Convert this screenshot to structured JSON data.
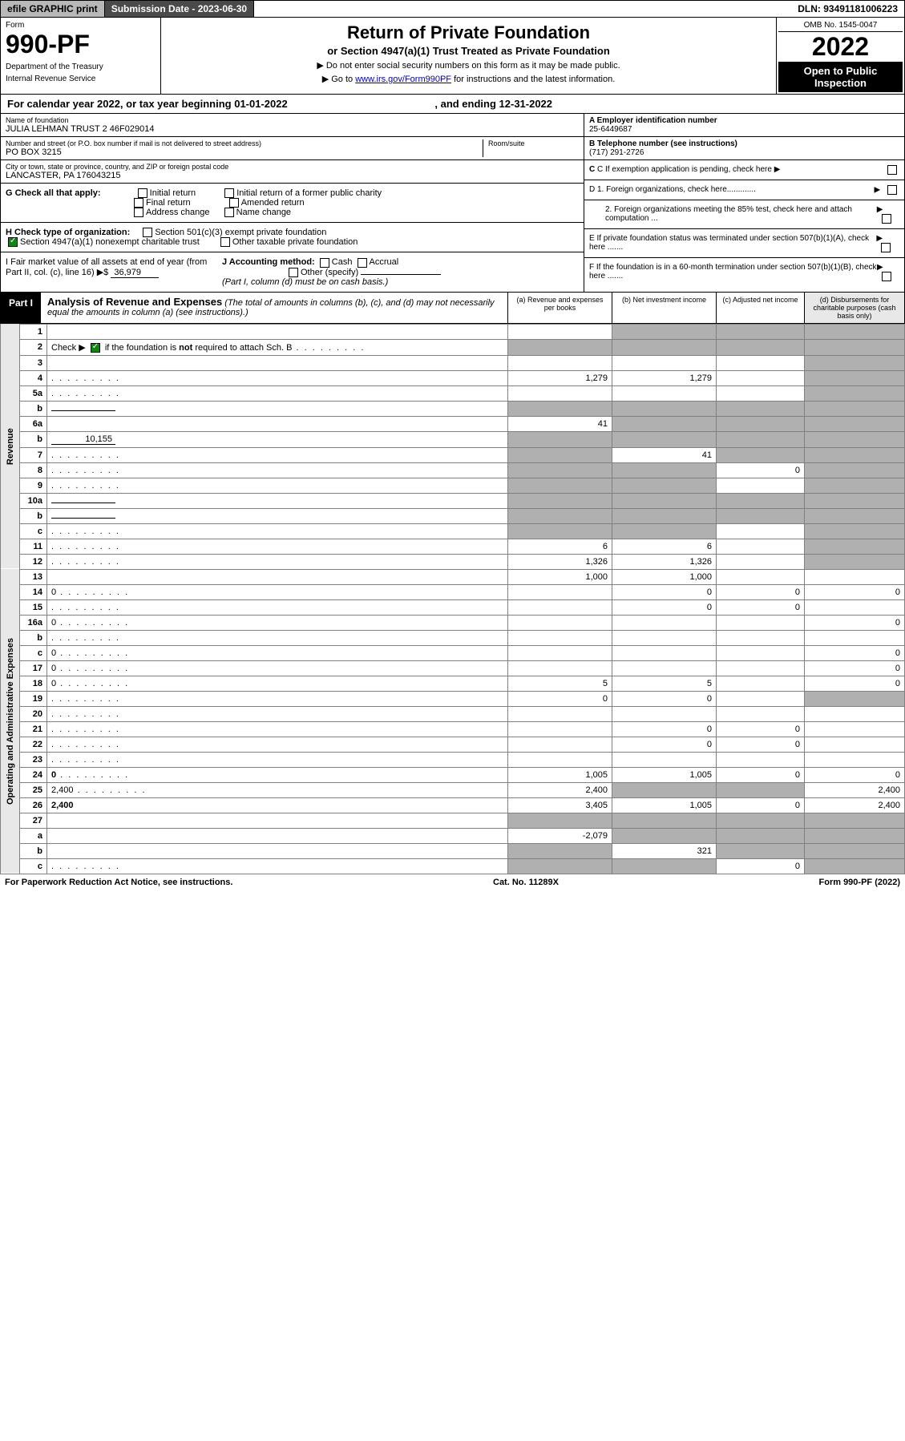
{
  "topbar": {
    "efile": "efile GRAPHIC print",
    "submission_label": "Submission Date - 2023-06-30",
    "dln_label": "DLN: 93491181006223"
  },
  "header": {
    "form_label": "Form",
    "form_number": "990-PF",
    "dept": "Department of the Treasury",
    "irs": "Internal Revenue Service",
    "title": "Return of Private Foundation",
    "subtitle": "or Section 4947(a)(1) Trust Treated as Private Foundation",
    "note1": "▶ Do not enter social security numbers on this form as it may be made public.",
    "note2_pre": "▶ Go to ",
    "note2_link": "www.irs.gov/Form990PF",
    "note2_post": " for instructions and the latest information.",
    "omb": "OMB No. 1545-0047",
    "year": "2022",
    "open": "Open to Public Inspection"
  },
  "calyear": "For calendar year 2022, or tax year beginning 01-01-2022",
  "calyear_end": ", and ending 12-31-2022",
  "info": {
    "name_label": "Name of foundation",
    "name": "JULIA LEHMAN TRUST 2 46F029014",
    "addr_label": "Number and street (or P.O. box number if mail is not delivered to street address)",
    "addr": "PO BOX 3215",
    "room_label": "Room/suite",
    "city_label": "City or town, state or province, country, and ZIP or foreign postal code",
    "city": "LANCASTER, PA  176043215",
    "ein_label": "A Employer identification number",
    "ein": "25-6449687",
    "phone_label": "B Telephone number (see instructions)",
    "phone": "(717) 291-2726",
    "c_label": "C If exemption application is pending, check here",
    "d1_label": "D 1. Foreign organizations, check here.............",
    "d2_label": "2. Foreign organizations meeting the 85% test, check here and attach computation ...",
    "e_label": "E If private foundation status was terminated under section 507(b)(1)(A), check here .......",
    "f_label": "F  If the foundation is in a 60-month termination under section 507(b)(1)(B), check here .......",
    "g_label": "G Check all that apply:",
    "g_opts": [
      "Initial return",
      "Initial return of a former public charity",
      "Final return",
      "Amended return",
      "Address change",
      "Name change"
    ],
    "h_label": "H Check type of organization:",
    "h_opt1": "Section 501(c)(3) exempt private foundation",
    "h_opt2": "Section 4947(a)(1) nonexempt charitable trust",
    "h_opt3": "Other taxable private foundation",
    "i_label": "I Fair market value of all assets at end of year (from Part II, col. (c), line 16)",
    "i_val": "36,979",
    "j_label": "J Accounting method:",
    "j_cash": "Cash",
    "j_accrual": "Accrual",
    "j_other": "Other (specify)",
    "j_note": "(Part I, column (d) must be on cash basis.)"
  },
  "part1": {
    "label": "Part I",
    "title": "Analysis of Revenue and Expenses",
    "title_note": " (The total of amounts in columns (b), (c), and (d) may not necessarily equal the amounts in column (a) (see instructions).)",
    "colA": "(a)   Revenue and expenses per books",
    "colB": "(b)   Net investment income",
    "colC": "(c)   Adjusted net income",
    "colD": "(d)  Disbursements for charitable purposes (cash basis only)"
  },
  "sections": {
    "revenue": "Revenue",
    "expenses": "Operating and Administrative Expenses"
  },
  "lines": [
    {
      "n": "1",
      "d": "",
      "a": "",
      "b": "",
      "c": "",
      "shB": true,
      "shC": true,
      "shD": true
    },
    {
      "n": "2",
      "d": "",
      "a": "",
      "b": "",
      "c": "",
      "shA": true,
      "shB": true,
      "shC": true,
      "shD": true,
      "check": true,
      "dots": true
    },
    {
      "n": "3",
      "d": "",
      "a": "",
      "b": "",
      "c": "",
      "shD": true
    },
    {
      "n": "4",
      "d": "",
      "a": "1,279",
      "b": "1,279",
      "c": "",
      "shD": true,
      "dots": true
    },
    {
      "n": "5a",
      "d": "",
      "a": "",
      "b": "",
      "c": "",
      "shD": true,
      "dots": true
    },
    {
      "n": "b",
      "d": "",
      "a": "",
      "b": "",
      "c": "",
      "shA": true,
      "shB": true,
      "shC": true,
      "shD": true,
      "inline": true
    },
    {
      "n": "6a",
      "d": "",
      "a": "41",
      "b": "",
      "c": "",
      "shB": true,
      "shC": true,
      "shD": true
    },
    {
      "n": "b",
      "d": "",
      "a": "",
      "b": "",
      "c": "",
      "shA": true,
      "shB": true,
      "shC": true,
      "shD": true,
      "inline": true,
      "inlineval": "10,155"
    },
    {
      "n": "7",
      "d": "",
      "a": "",
      "b": "41",
      "c": "",
      "shA": true,
      "shC": true,
      "shD": true,
      "dots": true
    },
    {
      "n": "8",
      "d": "",
      "a": "",
      "b": "",
      "c": "0",
      "shA": true,
      "shB": true,
      "shD": true,
      "dots": true
    },
    {
      "n": "9",
      "d": "",
      "a": "",
      "b": "",
      "c": "",
      "shA": true,
      "shB": true,
      "shD": true,
      "dots": true
    },
    {
      "n": "10a",
      "d": "",
      "a": "",
      "b": "",
      "c": "",
      "shA": true,
      "shB": true,
      "shC": true,
      "shD": true,
      "inline": true
    },
    {
      "n": "b",
      "d": "",
      "a": "",
      "b": "",
      "c": "",
      "shA": true,
      "shB": true,
      "shC": true,
      "shD": true,
      "inline": true,
      "dots": true
    },
    {
      "n": "c",
      "d": "",
      "a": "",
      "b": "",
      "c": "",
      "shA": true,
      "shB": true,
      "shD": true,
      "dots": true
    },
    {
      "n": "11",
      "d": "",
      "a": "6",
      "b": "6",
      "c": "",
      "shD": true,
      "dots": true
    },
    {
      "n": "12",
      "d": "",
      "a": "1,326",
      "b": "1,326",
      "c": "",
      "shD": true,
      "bold": true,
      "dots": true
    },
    {
      "n": "13",
      "d": "",
      "a": "1,000",
      "b": "1,000",
      "c": "",
      "sec": "exp"
    },
    {
      "n": "14",
      "d": "0",
      "a": "",
      "b": "0",
      "c": "0",
      "dots": true
    },
    {
      "n": "15",
      "d": "",
      "a": "",
      "b": "0",
      "c": "0",
      "dots": true
    },
    {
      "n": "16a",
      "d": "0",
      "a": "",
      "b": "",
      "c": "",
      "dots": true
    },
    {
      "n": "b",
      "d": "",
      "a": "",
      "b": "",
      "c": "",
      "dots": true
    },
    {
      "n": "c",
      "d": "0",
      "a": "",
      "b": "",
      "c": "",
      "dots": true
    },
    {
      "n": "17",
      "d": "0",
      "a": "",
      "b": "",
      "c": "",
      "dots": true
    },
    {
      "n": "18",
      "d": "0",
      "a": "5",
      "b": "5",
      "c": "",
      "dots": true
    },
    {
      "n": "19",
      "d": "",
      "a": "0",
      "b": "0",
      "c": "",
      "shD": true,
      "dots": true
    },
    {
      "n": "20",
      "d": "",
      "a": "",
      "b": "",
      "c": "",
      "dots": true
    },
    {
      "n": "21",
      "d": "",
      "a": "",
      "b": "0",
      "c": "0",
      "dots": true
    },
    {
      "n": "22",
      "d": "",
      "a": "",
      "b": "0",
      "c": "0",
      "dots": true
    },
    {
      "n": "23",
      "d": "",
      "a": "",
      "b": "",
      "c": "",
      "dots": true
    },
    {
      "n": "24",
      "d": "0",
      "a": "1,005",
      "b": "1,005",
      "c": "0",
      "bold": true,
      "dots": true
    },
    {
      "n": "25",
      "d": "2,400",
      "a": "2,400",
      "b": "",
      "c": "",
      "shB": true,
      "shC": true,
      "dots": true
    },
    {
      "n": "26",
      "d": "2,400",
      "a": "3,405",
      "b": "1,005",
      "c": "0",
      "bold": true
    },
    {
      "n": "27",
      "d": "",
      "a": "",
      "b": "",
      "c": "",
      "shA": true,
      "shB": true,
      "shC": true,
      "shD": true
    },
    {
      "n": "a",
      "d": "",
      "a": "-2,079",
      "b": "",
      "c": "",
      "shB": true,
      "shC": true,
      "shD": true,
      "bold": true
    },
    {
      "n": "b",
      "d": "",
      "a": "",
      "b": "321",
      "c": "",
      "shA": true,
      "shC": true,
      "shD": true,
      "bold": true
    },
    {
      "n": "c",
      "d": "",
      "a": "",
      "b": "",
      "c": "0",
      "shA": true,
      "shB": true,
      "shD": true,
      "bold": true,
      "dots": true
    }
  ],
  "footer": {
    "left": "For Paperwork Reduction Act Notice, see instructions.",
    "mid": "Cat. No. 11289X",
    "right": "Form 990-PF (2022)"
  }
}
